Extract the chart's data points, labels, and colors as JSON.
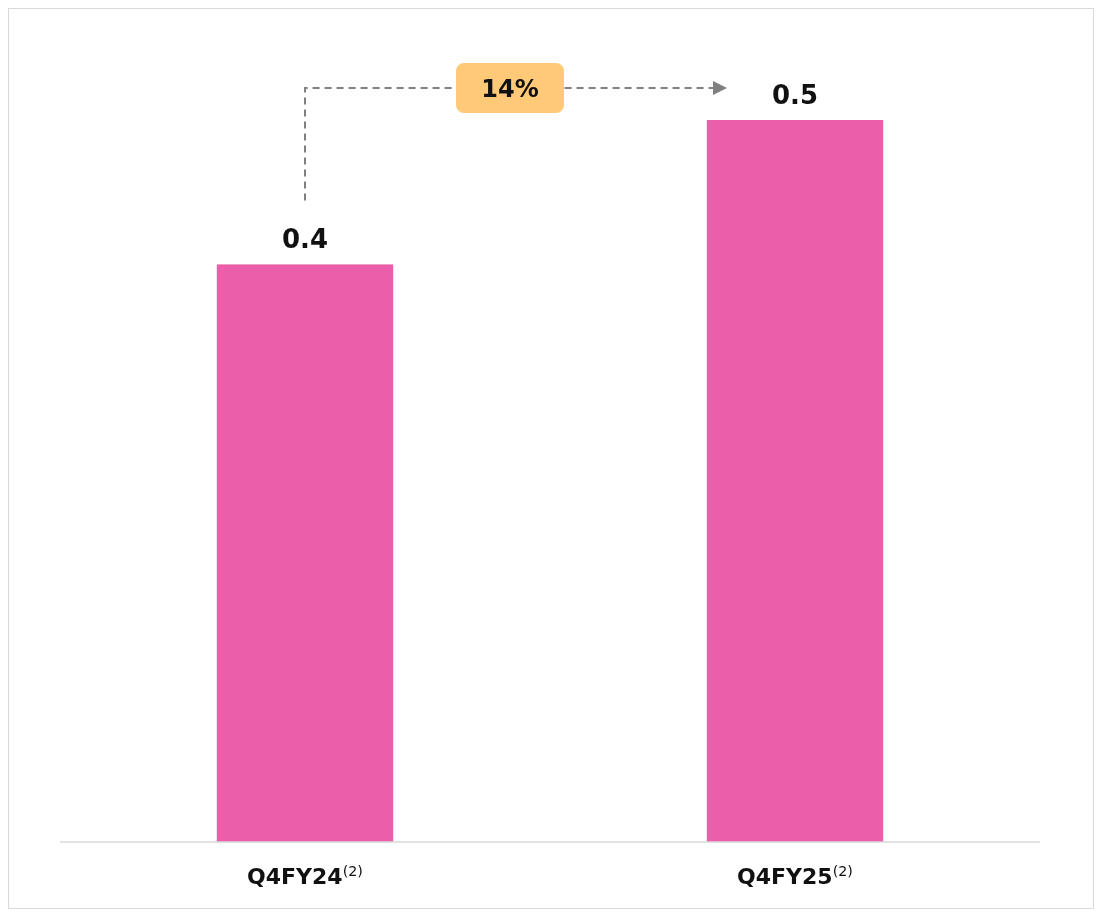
{
  "chart_data": {
    "type": "bar",
    "categories": [
      "Q4FY24$^{(2)}$",
      "Q4FY25$^{(2)}$"
    ],
    "values": [
      0.4,
      0.5
    ],
    "color": "#eb5ea9",
    "data_labels": true,
    "annotations": [
      "14%"
    ]
  }
}
